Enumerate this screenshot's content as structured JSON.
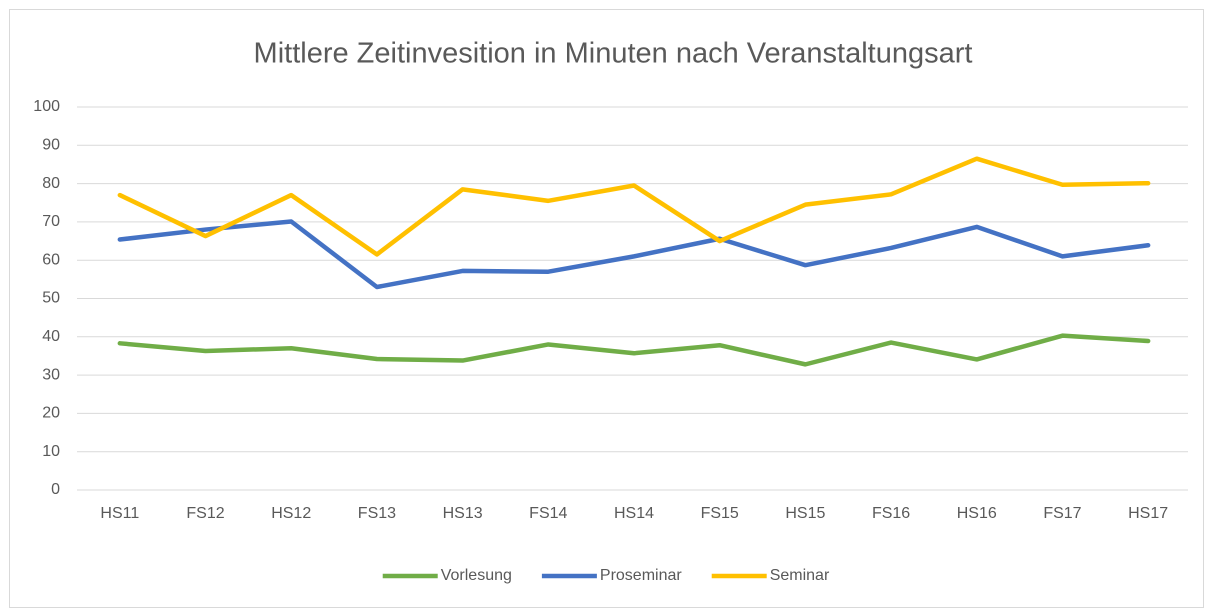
{
  "chart_data": {
    "type": "line",
    "title": "Mittlere Zeitinvesition in Minuten nach Veranstaltungsart",
    "categories": [
      "HS11",
      "FS12",
      "HS12",
      "FS13",
      "HS13",
      "FS14",
      "HS14",
      "FS15",
      "HS15",
      "FS16",
      "HS16",
      "FS17",
      "HS17"
    ],
    "series": [
      {
        "name": "Vorlesung",
        "color": "#70ad47",
        "values": [
          38.3,
          36.3,
          37,
          34.2,
          33.8,
          38,
          35.7,
          37.8,
          32.8,
          38.5,
          34.1,
          40.3,
          38.9
        ]
      },
      {
        "name": "Proseminar",
        "color": "#4472c4",
        "values": [
          65.4,
          68,
          70.1,
          53,
          57.2,
          57,
          61,
          65.6,
          58.7,
          63.2,
          68.7,
          61,
          63.9
        ]
      },
      {
        "name": "Seminar",
        "color": "#ffc000",
        "values": [
          77,
          66.3,
          77,
          61.5,
          78.5,
          75.5,
          79.5,
          65,
          74.5,
          77.2,
          86.5,
          79.7,
          80.1
        ]
      }
    ],
    "ylim": [
      0,
      100
    ],
    "yticks": [
      0,
      10,
      20,
      30,
      40,
      50,
      60,
      70,
      80,
      90,
      100
    ],
    "grid": true,
    "legend": "bottom"
  }
}
